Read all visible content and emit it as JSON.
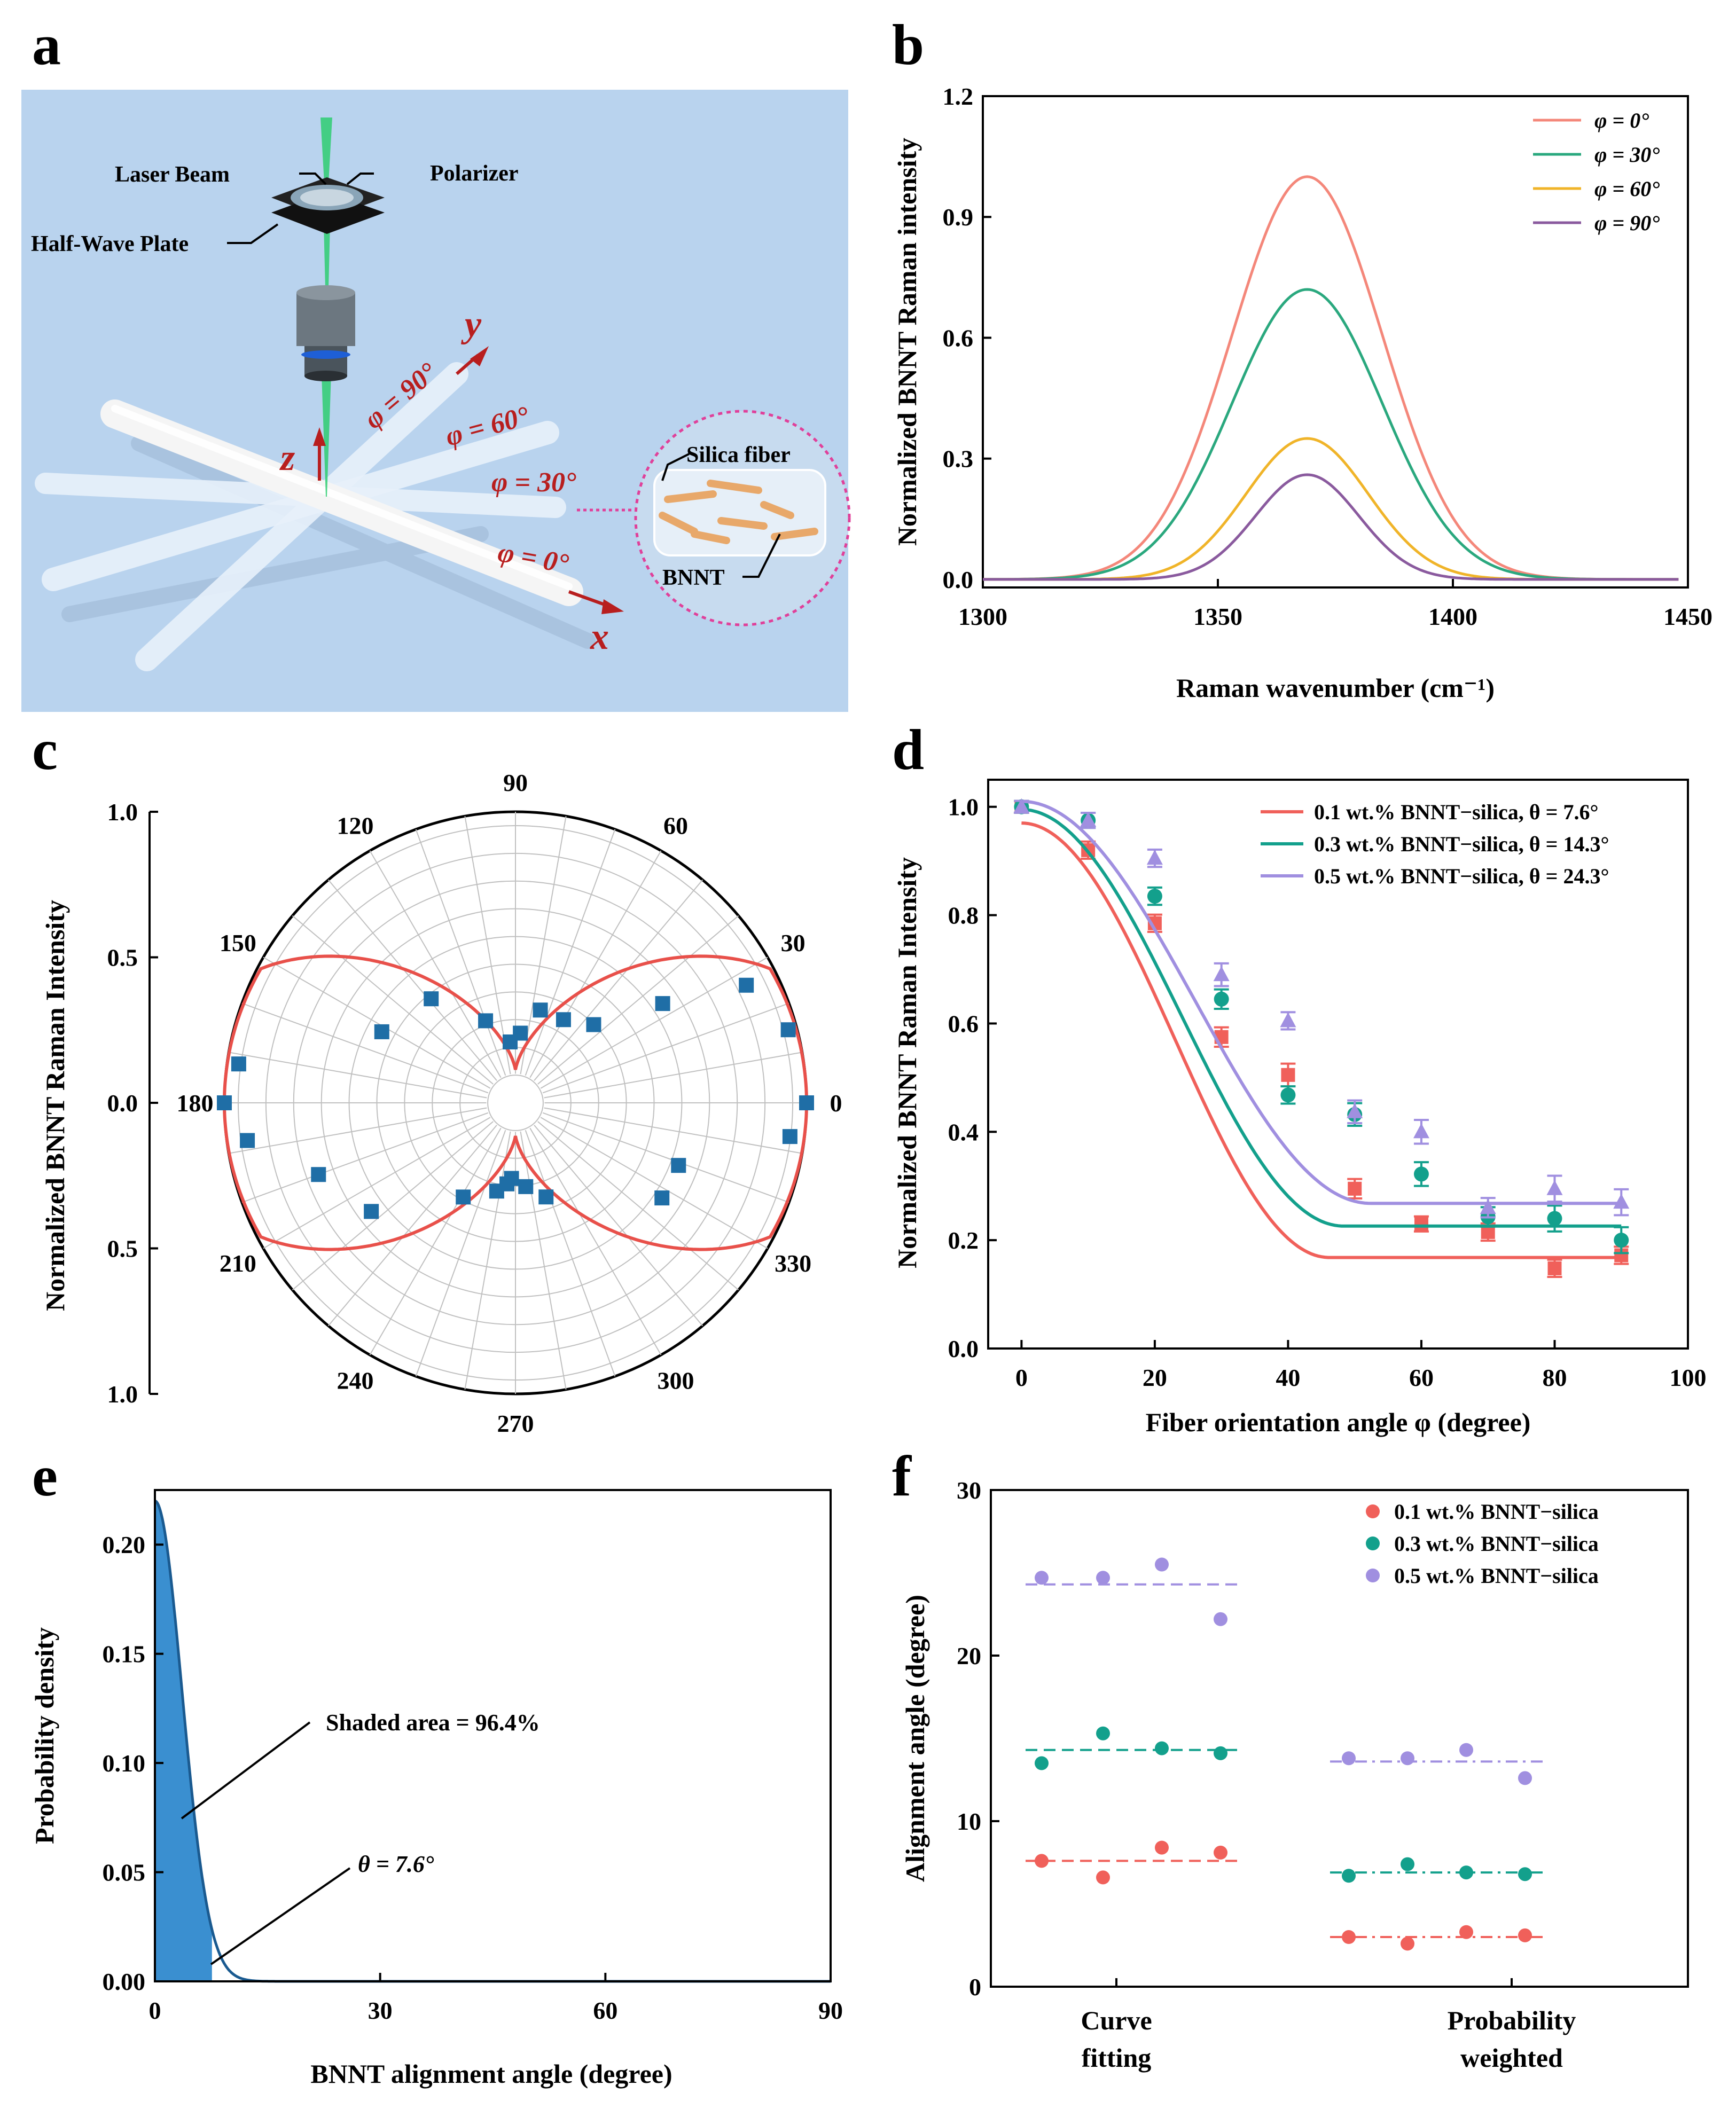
{
  "panels": [
    {
      "label": "a"
    },
    {
      "label": "b"
    },
    {
      "label": "c"
    },
    {
      "label": "d"
    },
    {
      "label": "e"
    },
    {
      "label": "f"
    }
  ],
  "schematic": {
    "laser_beam": "Laser Beam",
    "polarizer": "Polarizer",
    "half_wave_plate": "Half-Wave Plate",
    "silica_fiber": "Silica fiber",
    "bnnt": "BNNT",
    "phi_90": "φ = 90°",
    "phi_60": "φ = 60°",
    "phi_30": "φ = 30°",
    "phi_0": "φ = 0°",
    "axis_x": "x",
    "axis_y": "y",
    "axis_z": "z",
    "colors": {
      "background": "#b9d3ee",
      "beam": "#2ecc71",
      "axis_red": "#b81e1e",
      "inset_border": "#e0409a",
      "bnnt_rod": "#e8a86a"
    }
  },
  "chart_data": [
    {
      "id": "b",
      "type": "line",
      "xlabel": "Raman wavenumber (cm⁻¹)",
      "ylabel": "Normalized BNNT Raman  intensity",
      "xlim": [
        1300,
        1450
      ],
      "ylim": [
        -0.02,
        1.2
      ],
      "xticks": [
        "1300",
        "1350",
        "1400",
        "1450"
      ],
      "yticks": [
        "0.0",
        "0.3",
        "0.6",
        "0.9",
        "1.2"
      ],
      "peak_center": 1369,
      "series": [
        {
          "name": "φ = 0°",
          "amplitude": 1.0,
          "width": 16,
          "color": "#f4877a"
        },
        {
          "name": "φ = 30°",
          "amplitude": 0.72,
          "width": 16,
          "color": "#2aa87e"
        },
        {
          "name": "φ = 60°",
          "amplitude": 0.35,
          "width": 13,
          "color": "#f0b429"
        },
        {
          "name": "φ = 90°",
          "amplitude": 0.26,
          "width": 11,
          "color": "#8a5a9e"
        }
      ]
    },
    {
      "id": "c",
      "type": "scatter",
      "subtype": "polar",
      "ylabel": "Normalized BNNT Raman Intensity",
      "rlim": [
        0,
        1.0
      ],
      "radial_ticks": [
        "1.0",
        "0.5",
        "0.0",
        "0.5",
        "1.0"
      ],
      "angle_ticks": [
        "0",
        "30",
        "60",
        "90",
        "120",
        "150",
        "180",
        "210",
        "240",
        "270",
        "300",
        "330"
      ],
      "fit": {
        "name": "fit",
        "color": "#e8504a",
        "r0": 0.135,
        "r90": 0.118
      },
      "marker_color": "#1f6ea6",
      "points": [
        {
          "angle": 0,
          "r": 1.0
        },
        {
          "angle": 15,
          "r": 0.97
        },
        {
          "angle": 27,
          "r": 0.89
        },
        {
          "angle": 34,
          "r": 0.61
        },
        {
          "angle": 45,
          "r": 0.38
        },
        {
          "angle": 60,
          "r": 0.33
        },
        {
          "angle": 75,
          "r": 0.33
        },
        {
          "angle": 86,
          "r": 0.24
        },
        {
          "angle": 95,
          "r": 0.21
        },
        {
          "angle": 110,
          "r": 0.3
        },
        {
          "angle": 129,
          "r": 0.46
        },
        {
          "angle": 152,
          "r": 0.52
        },
        {
          "angle": 172,
          "r": 0.96
        },
        {
          "angle": 180,
          "r": 1.0
        },
        {
          "angle": 188,
          "r": 0.93
        },
        {
          "angle": 200,
          "r": 0.72
        },
        {
          "angle": 217,
          "r": 0.62
        },
        {
          "angle": 241,
          "r": 0.37
        },
        {
          "angle": 258,
          "r": 0.31
        },
        {
          "angle": 267,
          "r": 0.26
        },
        {
          "angle": 277,
          "r": 0.29
        },
        {
          "angle": 288,
          "r": 0.34
        },
        {
          "angle": 327,
          "r": 0.6
        },
        {
          "angle": 339,
          "r": 0.6
        },
        {
          "angle": 353,
          "r": 0.95
        },
        {
          "angle": 264,
          "r": 0.28
        }
      ]
    },
    {
      "id": "d",
      "type": "scatter",
      "xlabel": "Fiber orientation angle φ (degree)",
      "ylabel": "Normalized BNNT Raman Intensity",
      "xlim": [
        -5,
        100
      ],
      "ylim": [
        0,
        1.05
      ],
      "xticks": [
        "0",
        "20",
        "40",
        "60",
        "80",
        "100"
      ],
      "yticks": [
        "0.0",
        "0.2",
        "0.4",
        "0.6",
        "0.8",
        "1.0"
      ],
      "x": [
        0,
        10,
        20,
        30,
        40,
        50,
        60,
        70,
        80,
        90
      ],
      "series": [
        {
          "name": "0.1 wt.% BNNT−silica, θ = 7.6°",
          "color": "#f0605a",
          "marker": "square",
          "values": [
            1.0,
            0.92,
            0.785,
            0.575,
            0.505,
            0.295,
            0.23,
            0.215,
            0.148,
            0.172
          ],
          "errors": [
            0.005,
            0.01,
            0.01,
            0.012,
            0.015,
            0.012,
            0.008,
            0.01,
            0.01,
            0.01
          ],
          "fit": {
            "a": 0.97,
            "b": 0.168,
            "k": 0.034
          }
        },
        {
          "name": "0.3 wt.% BNNT−silica, θ = 14.3°",
          "color": "#13a08c",
          "marker": "circle",
          "values": [
            1.0,
            0.975,
            0.835,
            0.645,
            0.468,
            0.432,
            0.322,
            0.243,
            0.24,
            0.2
          ],
          "errors": [
            0.005,
            0.008,
            0.01,
            0.012,
            0.01,
            0.015,
            0.016,
            0.012,
            0.018,
            0.018
          ],
          "fit": {
            "a": 0.995,
            "b": 0.226,
            "k": 0.0325
          }
        },
        {
          "name": "0.5 wt.% BNNT−silica, θ = 24.3°",
          "color": "#a08fe0",
          "marker": "triangle",
          "values": [
            1.0,
            0.975,
            0.905,
            0.69,
            0.605,
            0.437,
            0.4,
            0.26,
            0.295,
            0.27
          ],
          "errors": [
            0.005,
            0.008,
            0.01,
            0.015,
            0.01,
            0.015,
            0.016,
            0.012,
            0.018,
            0.018
          ],
          "fit": {
            "a": 1.01,
            "b": 0.268,
            "k": 0.03
          }
        }
      ]
    },
    {
      "id": "e",
      "type": "area",
      "xlabel": "BNNT alignment angle (degree)",
      "ylabel": "Probability density",
      "xlim": [
        0,
        90
      ],
      "ylim": [
        0,
        0.225
      ],
      "xticks": [
        "0",
        "30",
        "60",
        "90"
      ],
      "yticks": [
        "0.00",
        "0.05",
        "0.10",
        "0.15",
        "0.20"
      ],
      "peak": 0.22,
      "sigma": 3.6,
      "shade_to": 7.6,
      "color": "#3a8fd0",
      "line_color": "#1a5a90",
      "annotation_area": "Shaded area = 96.4%",
      "annotation_theta": "θ = 7.6°"
    },
    {
      "id": "f",
      "type": "scatter",
      "ylabel": "Alignment angle (degree)",
      "ylim": [
        0,
        30
      ],
      "yticks": [
        "0",
        "10",
        "20",
        "30"
      ],
      "categories": [
        {
          "line1": "Curve",
          "line2": "fitting"
        },
        {
          "line1": "Probability",
          "line2": "weighted"
        }
      ],
      "series": [
        {
          "name": "0.1 wt.% BNNT−silica",
          "color": "#f0605a",
          "groups": [
            {
              "points": [
                7.6,
                6.6,
                8.4,
                8.1
              ],
              "mean": 7.6,
              "dash": "dashed"
            },
            {
              "points": [
                3.0,
                2.6,
                3.3,
                3.1
              ],
              "mean": 3.0,
              "dash": "dashdot"
            }
          ]
        },
        {
          "name": "0.3 wt.% BNNT−silica",
          "color": "#13a08c",
          "groups": [
            {
              "points": [
                13.5,
                15.3,
                14.4,
                14.1
              ],
              "mean": 14.3,
              "dash": "dashed"
            },
            {
              "points": [
                6.7,
                7.4,
                6.9,
                6.8
              ],
              "mean": 6.9,
              "dash": "dashdot"
            }
          ]
        },
        {
          "name": "0.5 wt.% BNNT−silica",
          "color": "#a08fe0",
          "groups": [
            {
              "points": [
                24.7,
                24.7,
                25.5,
                22.2
              ],
              "mean": 24.3,
              "dash": "dashed"
            },
            {
              "points": [
                13.8,
                13.8,
                14.3,
                12.6
              ],
              "mean": 13.6,
              "dash": "dashdot"
            }
          ]
        }
      ]
    }
  ]
}
